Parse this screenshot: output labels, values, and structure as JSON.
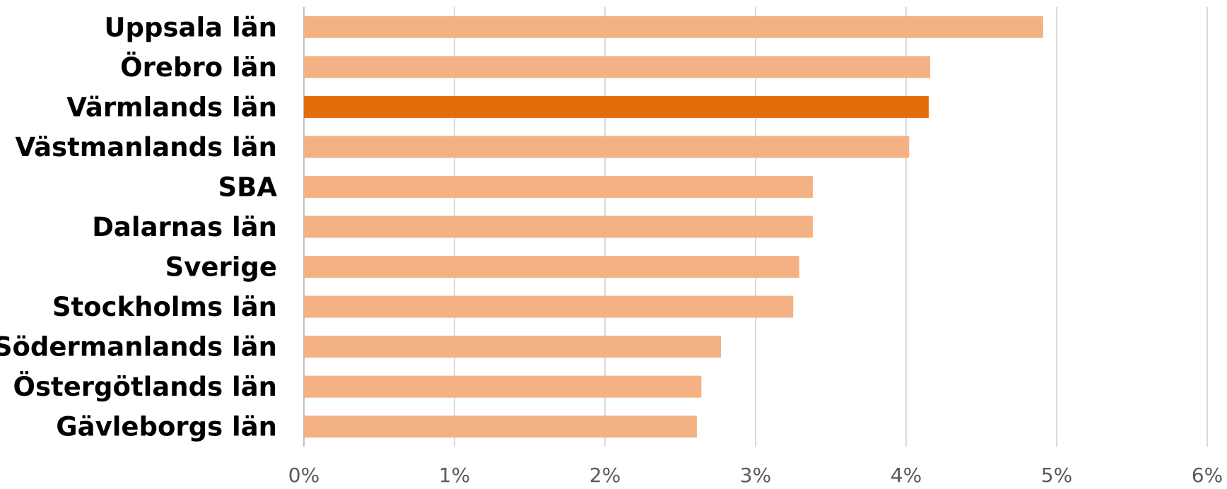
{
  "chart_data": {
    "type": "bar",
    "orientation": "horizontal",
    "categories": [
      "Uppsala län",
      "Örebro län",
      "Värmlands län",
      "Västmanlands län",
      "SBA",
      "Dalarnas län",
      "Sverige",
      "Stockholms län",
      "Södermanlands län",
      "Östergötlands län",
      "Gävleborgs län"
    ],
    "values": [
      4.91,
      4.16,
      4.15,
      4.02,
      3.38,
      3.38,
      3.29,
      3.25,
      2.77,
      2.64,
      2.61
    ],
    "highlight": "Värmlands län",
    "xlim": [
      0,
      6
    ],
    "xticks": [
      "0%",
      "1%",
      "2%",
      "3%",
      "4%",
      "5%",
      "6%"
    ],
    "grid": true,
    "colors": {
      "bar": "#f4b183",
      "highlight": "#e46c0a",
      "grid": "#d9d9d9"
    },
    "title": "",
    "xlabel": "",
    "ylabel": ""
  }
}
